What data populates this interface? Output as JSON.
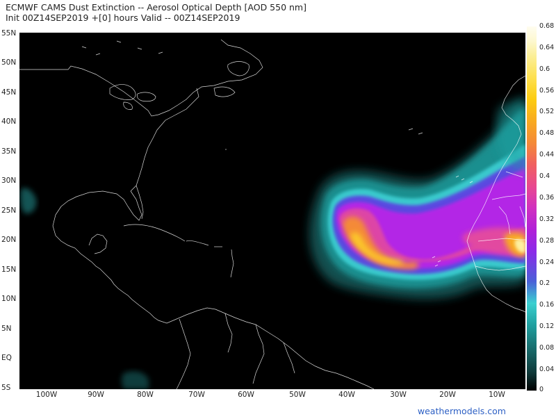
{
  "header": {
    "line1": "ECMWF CAMS Dust Extinction -- Aerosol Optical Depth [AOD 550 nm]",
    "line2": "Init 00Z14SEP2019 +[0] hours Valid -- 00Z14SEP2019"
  },
  "map": {
    "lat_labels": [
      "55N",
      "50N",
      "45N",
      "40N",
      "35N",
      "30N",
      "25N",
      "20N",
      "15N",
      "10N",
      "5N",
      "EQ",
      "5S"
    ],
    "lon_labels": [
      "100W",
      "90W",
      "80W",
      "70W",
      "60W",
      "50W",
      "40W",
      "30W",
      "20W",
      "10W"
    ],
    "colorbar_labels": [
      "0.68",
      "0.64",
      "0.6",
      "0.56",
      "0.52",
      "0.48",
      "0.44",
      "0.4",
      "0.36",
      "0.32",
      "0.28",
      "0.24",
      "0.2",
      "0.16",
      "0.12",
      "0.08",
      "0.04",
      "0"
    ],
    "background_color": "#000000",
    "coastline_color": "#ffffff",
    "colorbar_colors": [
      "#000000",
      "#0f3a3a",
      "#197070",
      "#1fa0a0",
      "#3ad0d0",
      "#4a60d8",
      "#8a2be8",
      "#b020d8",
      "#d030c0",
      "#e84890",
      "#f06060",
      "#f48a38",
      "#f8aa20",
      "#fccc10",
      "#fde050",
      "#fbef99",
      "#fdf8d0",
      "#fffdf0"
    ]
  },
  "credit": "weathermodels.com"
}
